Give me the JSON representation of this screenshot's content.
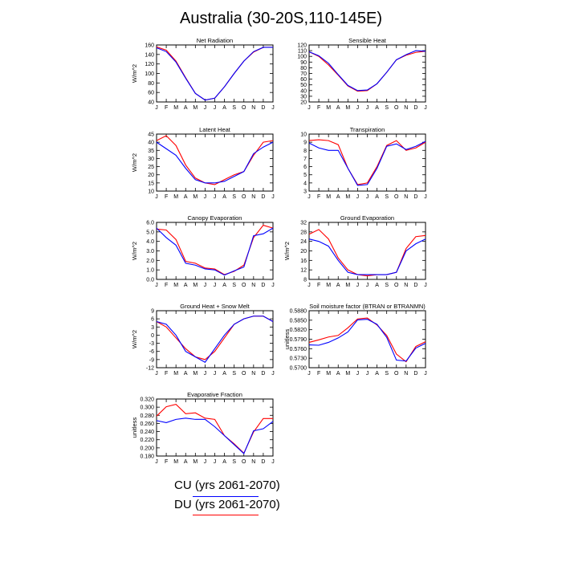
{
  "page": {
    "title": "Australia (30-20S,110-145E)"
  },
  "legend": {
    "items": [
      {
        "label": "CU (yrs 2061-2070)",
        "color": "#0000ff"
      },
      {
        "label": "DU (yrs 2061-2070)",
        "color": "#ff0000"
      }
    ]
  },
  "colors": {
    "cu": "#0000ff",
    "du": "#ff0000"
  },
  "chart_data": [
    {
      "type": "line",
      "title": "Net Radiation",
      "ylabel": "W/m^2",
      "xlabel": "",
      "categories": [
        "J",
        "F",
        "M",
        "A",
        "M",
        "J",
        "J",
        "A",
        "S",
        "O",
        "N",
        "D",
        "J"
      ],
      "ylim": [
        40,
        160
      ],
      "yticks": [
        "40",
        "60",
        "80",
        "100",
        "120",
        "140",
        "160"
      ],
      "series": [
        {
          "name": "CU",
          "values": [
            154,
            146,
            124,
            90,
            58,
            44,
            48,
            72,
            100,
            126,
            146,
            155,
            155
          ]
        },
        {
          "name": "DU",
          "values": [
            156,
            149,
            126,
            91,
            58,
            44,
            48,
            72,
            100,
            126,
            145,
            155,
            155
          ]
        }
      ]
    },
    {
      "type": "line",
      "title": "Sensible Heat",
      "ylabel": "",
      "xlabel": "",
      "categories": [
        "J",
        "F",
        "M",
        "A",
        "M",
        "J",
        "J",
        "A",
        "S",
        "O",
        "N",
        "D",
        "J"
      ],
      "ylim": [
        20,
        120
      ],
      "yticks": [
        "20",
        "30",
        "40",
        "50",
        "60",
        "70",
        "80",
        "90",
        "100",
        "110",
        "120"
      ],
      "series": [
        {
          "name": "CU",
          "values": [
            108,
            101,
            88,
            68,
            49,
            40,
            41,
            52,
            72,
            94,
            103,
            110,
            109
          ]
        },
        {
          "name": "DU",
          "values": [
            108,
            100,
            85,
            67,
            48,
            39,
            40,
            52,
            72,
            94,
            102,
            107,
            109
          ]
        }
      ]
    },
    {
      "type": "line",
      "title": "Latent Heat",
      "ylabel": "W/m^2",
      "xlabel": "",
      "categories": [
        "J",
        "F",
        "M",
        "A",
        "M",
        "J",
        "J",
        "A",
        "S",
        "O",
        "N",
        "D",
        "J"
      ],
      "ylim": [
        10,
        45
      ],
      "yticks": [
        "10",
        "15",
        "20",
        "25",
        "30",
        "35",
        "40",
        "45"
      ],
      "series": [
        {
          "name": "CU",
          "values": [
            40,
            36,
            32,
            24,
            17,
            15,
            15,
            16,
            19,
            22,
            33,
            37,
            40
          ]
        },
        {
          "name": "DU",
          "values": [
            41,
            44,
            38,
            26,
            18,
            15,
            14,
            17,
            20,
            22,
            32,
            40,
            41
          ]
        }
      ]
    },
    {
      "type": "line",
      "title": "Transpiration",
      "ylabel": "",
      "xlabel": "",
      "categories": [
        "J",
        "F",
        "M",
        "A",
        "M",
        "J",
        "J",
        "A",
        "S",
        "O",
        "N",
        "D",
        "J"
      ],
      "ylim": [
        3,
        10
      ],
      "yticks": [
        "3",
        "4",
        "5",
        "6",
        "7",
        "8",
        "9",
        "10"
      ],
      "series": [
        {
          "name": "CU",
          "values": [
            8.9,
            8.3,
            8.0,
            8.0,
            5.8,
            3.7,
            3.8,
            5.8,
            8.5,
            8.8,
            8.1,
            8.5,
            9.1
          ]
        },
        {
          "name": "DU",
          "values": [
            9.2,
            9.3,
            9.2,
            8.7,
            5.8,
            3.8,
            4.0,
            6.0,
            8.6,
            9.2,
            8.0,
            8.3,
            9.0
          ]
        }
      ]
    },
    {
      "type": "line",
      "title": "Canopy Evaporation",
      "ylabel": "W/m^2",
      "xlabel": "",
      "categories": [
        "J",
        "F",
        "M",
        "A",
        "M",
        "J",
        "J",
        "A",
        "S",
        "O",
        "N",
        "D",
        "J"
      ],
      "ylim": [
        0,
        6
      ],
      "yticks": [
        "0.0",
        "1.0",
        "2.0",
        "3.0",
        "4.0",
        "5.0",
        "6.0"
      ],
      "series": [
        {
          "name": "CU",
          "values": [
            5.4,
            4.4,
            3.6,
            1.7,
            1.5,
            1.1,
            1.0,
            0.45,
            0.9,
            1.3,
            4.6,
            4.8,
            5.4
          ]
        },
        {
          "name": "DU",
          "values": [
            5.3,
            5.2,
            4.2,
            1.9,
            1.7,
            1.2,
            1.1,
            0.5,
            0.85,
            1.5,
            4.4,
            5.7,
            5.4
          ]
        }
      ]
    },
    {
      "type": "line",
      "title": "Ground Evaporation",
      "ylabel": "W/m^2",
      "xlabel": "",
      "categories": [
        "J",
        "F",
        "M",
        "A",
        "M",
        "J",
        "J",
        "A",
        "S",
        "O",
        "N",
        "D",
        "J"
      ],
      "ylim": [
        8,
        32
      ],
      "yticks": [
        "8",
        "12",
        "16",
        "20",
        "24",
        "28",
        "32"
      ],
      "series": [
        {
          "name": "CU",
          "values": [
            25,
            24,
            22,
            16,
            11,
            10,
            10,
            10,
            10,
            11,
            20,
            23,
            25
          ]
        },
        {
          "name": "DU",
          "values": [
            27,
            29,
            25,
            17,
            12,
            10,
            9.5,
            10,
            10,
            11,
            21,
            26,
            26.5
          ]
        }
      ]
    },
    {
      "type": "line",
      "title": "Ground Heat + Snow Melt",
      "ylabel": "W/m^2",
      "xlabel": "",
      "categories": [
        "J",
        "F",
        "M",
        "A",
        "M",
        "J",
        "J",
        "A",
        "S",
        "O",
        "N",
        "D",
        "J"
      ],
      "ylim": [
        -12,
        9
      ],
      "yticks": [
        "-12",
        "-9",
        "-6",
        "-3",
        "0",
        "3",
        "6",
        "9"
      ],
      "series": [
        {
          "name": "CU",
          "values": [
            5,
            4,
            0,
            -6,
            -8,
            -10,
            -5,
            0,
            4,
            6,
            7,
            7,
            5
          ]
        },
        {
          "name": "DU",
          "values": [
            5,
            3,
            -1,
            -5,
            -8,
            -9,
            -6,
            -1,
            4,
            6,
            7,
            7,
            5
          ]
        }
      ]
    },
    {
      "type": "line",
      "title": "Soil moisture factor (BTRAN or BTRANMN)",
      "ylabel": "unitless",
      "xlabel": "",
      "categories": [
        "J",
        "F",
        "M",
        "A",
        "M",
        "J",
        "J",
        "A",
        "S",
        "O",
        "N",
        "D",
        "J"
      ],
      "ylim": [
        0.57,
        0.588
      ],
      "yticks": [
        "0.5700",
        "0.5730",
        "0.5760",
        "0.5790",
        "0.5820",
        "0.5850",
        "0.5880"
      ],
      "series": [
        {
          "name": "CU",
          "values": [
            0.5772,
            0.5771,
            0.578,
            0.5794,
            0.5813,
            0.5851,
            0.5853,
            0.5837,
            0.5796,
            0.5724,
            0.5721,
            0.5762,
            0.5777
          ]
        },
        {
          "name": "DU",
          "values": [
            0.578,
            0.5788,
            0.5797,
            0.5802,
            0.5826,
            0.5854,
            0.5857,
            0.5835,
            0.5802,
            0.5743,
            0.5719,
            0.5767,
            0.5782
          ]
        }
      ]
    },
    {
      "type": "line",
      "title": "Evaporative Fraction",
      "ylabel": "unitless",
      "xlabel": "",
      "categories": [
        "J",
        "F",
        "M",
        "A",
        "M",
        "J",
        "J",
        "A",
        "S",
        "O",
        "N",
        "D",
        "J"
      ],
      "ylim": [
        0.18,
        0.32
      ],
      "yticks": [
        "0.180",
        "0.200",
        "0.220",
        "0.240",
        "0.260",
        "0.280",
        "0.300",
        "0.320"
      ],
      "series": [
        {
          "name": "CU",
          "values": [
            0.267,
            0.262,
            0.27,
            0.273,
            0.27,
            0.27,
            0.252,
            0.23,
            0.208,
            0.186,
            0.242,
            0.247,
            0.265
          ]
        },
        {
          "name": "DU",
          "values": [
            0.278,
            0.301,
            0.307,
            0.284,
            0.286,
            0.273,
            0.27,
            0.23,
            0.21,
            0.187,
            0.239,
            0.272,
            0.272
          ]
        }
      ]
    }
  ]
}
